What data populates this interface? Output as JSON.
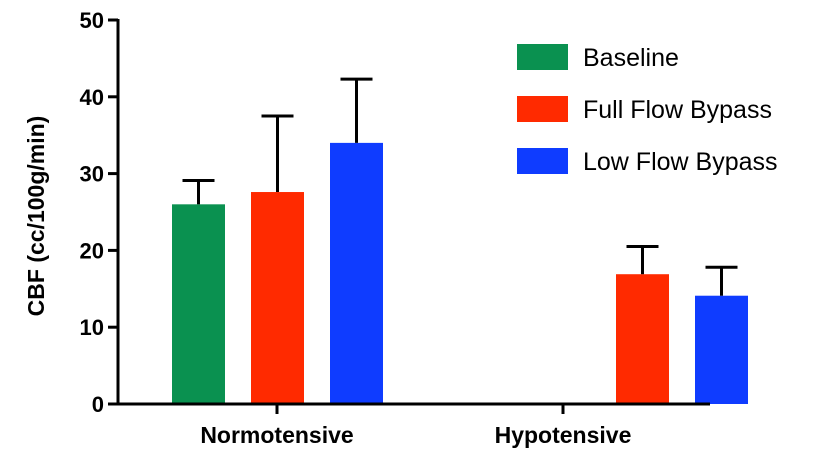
{
  "chart_data": {
    "type": "bar",
    "title": "",
    "xlabel": "",
    "ylabel": "CBF (cc/100g/min)",
    "ylim": [
      0,
      50
    ],
    "yticks": [
      "0",
      "10",
      "20",
      "30",
      "40",
      "50"
    ],
    "categories": [
      "Normotensive",
      "Hypotensive"
    ],
    "grid": false,
    "legend_position": "top-right",
    "series": [
      {
        "name": "Baseline",
        "color": "#0a9150",
        "values": [
          26.0,
          null
        ],
        "errors": [
          3.1,
          null
        ]
      },
      {
        "name": "Full Flow Bypass",
        "color": "#ff2a00",
        "values": [
          27.6,
          16.9
        ],
        "errors": [
          9.9,
          3.6
        ]
      },
      {
        "name": "Low Flow Bypass",
        "color": "#0f3cff",
        "values": [
          34.0,
          14.1
        ],
        "errors": [
          8.3,
          3.7
        ]
      }
    ]
  }
}
